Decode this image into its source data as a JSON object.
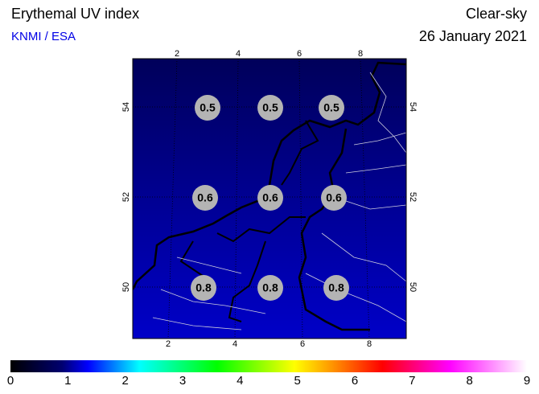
{
  "header": {
    "title": "Erythemal UV index",
    "source": "KNMI / ESA",
    "condition": "Clear-sky",
    "date": "26 January 2021"
  },
  "map": {
    "lon_ticks_top": [
      "2",
      "4",
      "6",
      "8"
    ],
    "lon_ticks_bottom": [
      "2",
      "4",
      "6",
      "8"
    ],
    "lat_ticks_left": [
      "54",
      "52",
      "50"
    ],
    "lat_ticks_right": [
      "54",
      "52",
      "50"
    ],
    "points": [
      [
        "0.5",
        "0.5",
        "0.5"
      ],
      [
        "0.6",
        "0.6",
        "0.6"
      ],
      [
        "0.8",
        "0.8",
        "0.8"
      ]
    ]
  },
  "colorbar": {
    "ticks": [
      "0",
      "1",
      "2",
      "3",
      "4",
      "5",
      "6",
      "7",
      "8",
      "9"
    ]
  }
}
